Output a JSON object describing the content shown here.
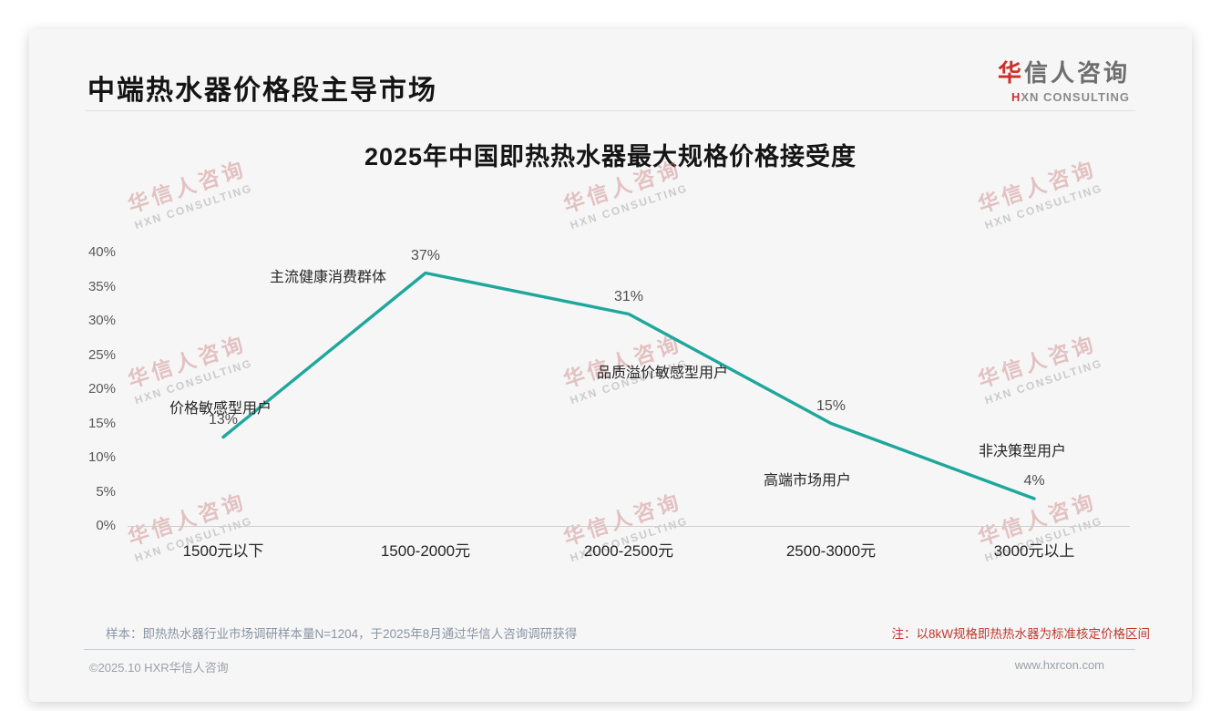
{
  "header": {
    "title": "中端热水器价格段主导市场"
  },
  "logo": {
    "zh_accent": "华",
    "zh_rest": "信人咨询",
    "en_accent": "H",
    "en_rest": "XN CONSULTING"
  },
  "chart_data": {
    "type": "line",
    "title": "2025年中国即热热水器最大规格价格接受度",
    "categories": [
      "1500元以下",
      "1500-2000元",
      "2000-2500元",
      "2500-3000元",
      "3000元以上"
    ],
    "values": [
      13,
      37,
      31,
      15,
      4
    ],
    "value_labels": [
      "13%",
      "37%",
      "31%",
      "15%",
      "4%"
    ],
    "point_names": [
      "价格敏感型用户",
      "主流健康消费群体",
      "品质溢价敏感型用户",
      "高端市场用户",
      "非决策型用户"
    ],
    "xlabel": "",
    "ylabel": "",
    "ylim": [
      0,
      40
    ],
    "ytick_step": 5,
    "yticks": [
      "40%",
      "35%",
      "30%",
      "25%",
      "20%",
      "15%",
      "10%",
      "5%",
      "0%"
    ],
    "grid": false,
    "legend": "none",
    "line_color": "#1FA79B"
  },
  "watermark": {
    "zh": "华信人咨询",
    "en": "HXN CONSULTING"
  },
  "notes": {
    "sample": "样本：即热热水器行业市场调研样本量N=1204，于2025年8月通过华信人咨询调研获得",
    "spec": "注：以8kW规格即热热水器为标准核定价格区间"
  },
  "footer": {
    "copyright": "©2025.10 HXR华信人咨询",
    "website": "www.hxrcon.com"
  },
  "colors": {
    "line": "#1FA79B",
    "accent_red": "#C0392B",
    "card_bg": "#F6F6F7"
  }
}
